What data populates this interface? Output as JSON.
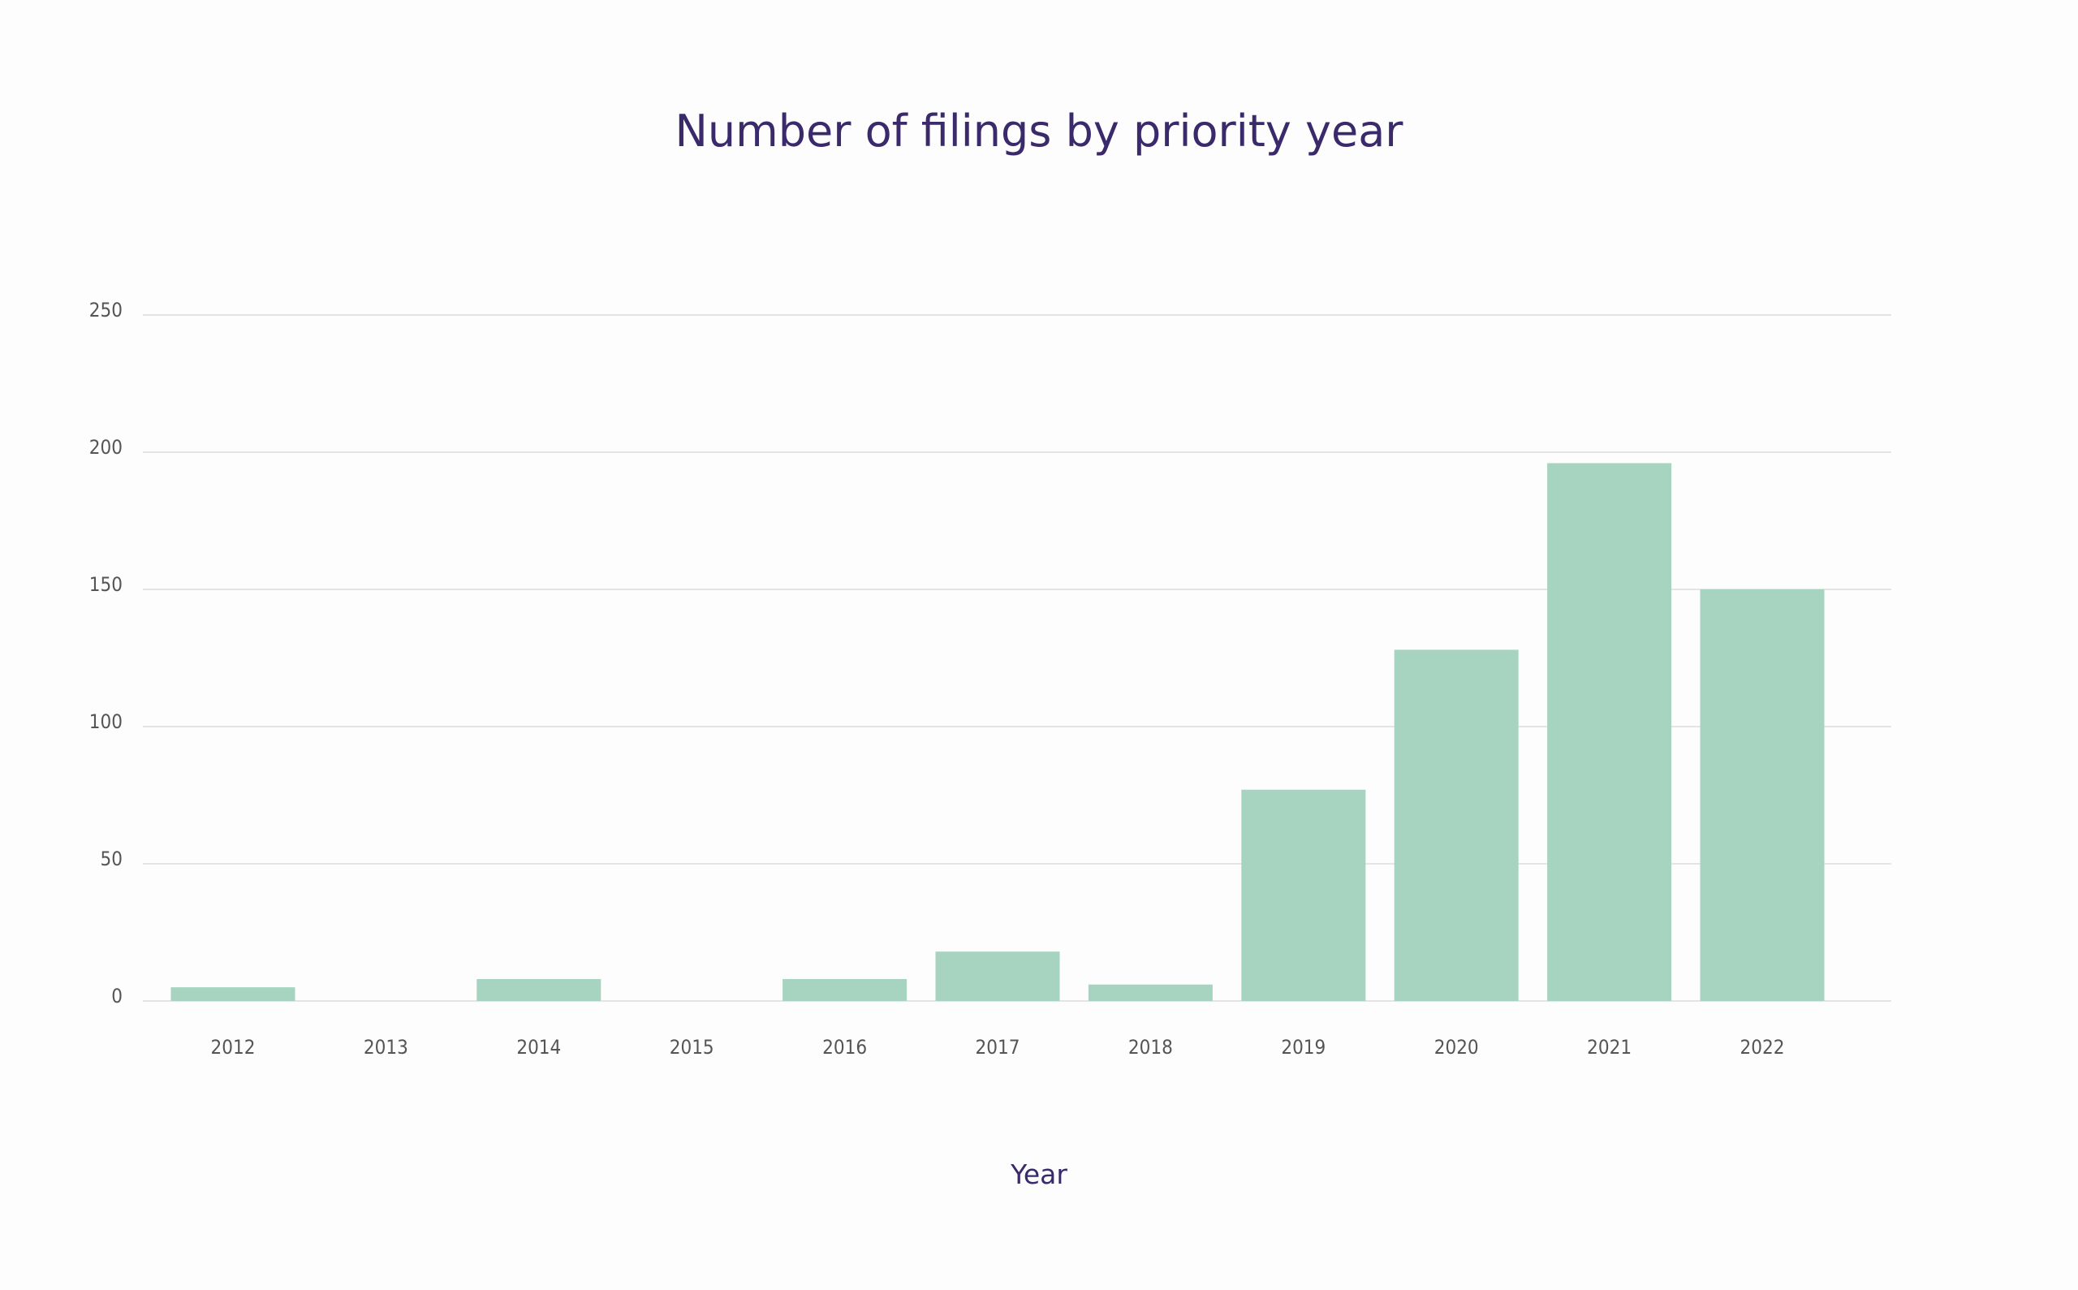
{
  "chart_data": {
    "type": "bar",
    "title": "Number of filings by priority year",
    "xlabel": "Year",
    "ylabel": "",
    "categories": [
      "2012",
      "2013",
      "2014",
      "2015",
      "2016",
      "2017",
      "2018",
      "2019",
      "2020",
      "2021",
      "2022"
    ],
    "values": [
      5,
      0,
      8,
      0,
      8,
      18,
      6,
      77,
      128,
      196,
      150
    ],
    "ylim": [
      0,
      250
    ],
    "yticks": [
      "0",
      "50",
      "100",
      "150",
      "200",
      "250"
    ],
    "grid": true,
    "legend": "none",
    "bar_color": "#a7d4c0",
    "title_color": "#3a2a6b"
  }
}
